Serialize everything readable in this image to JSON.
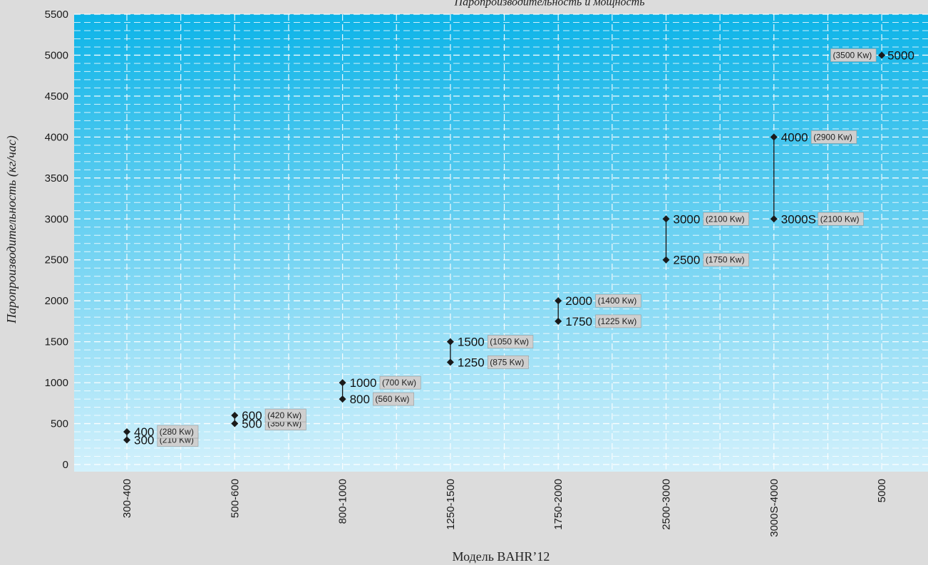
{
  "chart_data": {
    "type": "scatter",
    "title": "Паропроизводительность и мощность",
    "xlabel": "Модель BAHR’12",
    "ylabel": "Паропроизводительность (кг/час)",
    "ylim": [
      0,
      5500
    ],
    "yticks": [
      0,
      500,
      1000,
      1500,
      2000,
      2500,
      3000,
      3500,
      4000,
      4500,
      5000,
      5500
    ],
    "categories": [
      "300-400",
      "500-600",
      "800-1000",
      "1250-1500",
      "1750-2000",
      "2500-3000",
      "3000S-4000",
      "5000"
    ],
    "grid": true,
    "points": [
      {
        "category": "300-400",
        "value": 300,
        "label": "300",
        "power": "(210 Kw)"
      },
      {
        "category": "300-400",
        "value": 400,
        "label": "400",
        "power": "(280 Kw)"
      },
      {
        "category": "500-600",
        "value": 500,
        "label": "500",
        "power": "(350 Kw)"
      },
      {
        "category": "500-600",
        "value": 600,
        "label": "600",
        "power": "(420 Kw)"
      },
      {
        "category": "800-1000",
        "value": 800,
        "label": "800",
        "power": "(560 Kw)"
      },
      {
        "category": "800-1000",
        "value": 1000,
        "label": "1000",
        "power": "(700 Kw)"
      },
      {
        "category": "1250-1500",
        "value": 1250,
        "label": "1250",
        "power": "(875 Kw)"
      },
      {
        "category": "1250-1500",
        "value": 1500,
        "label": "1500",
        "power": "(1050 Kw)"
      },
      {
        "category": "1750-2000",
        "value": 1750,
        "label": "1750",
        "power": "(1225 Kw)"
      },
      {
        "category": "1750-2000",
        "value": 2000,
        "label": "2000",
        "power": "(1400 Kw)"
      },
      {
        "category": "2500-3000",
        "value": 2500,
        "label": "2500",
        "power": "(1750 Kw)"
      },
      {
        "category": "2500-3000",
        "value": 3000,
        "label": "3000",
        "power": "(2100 Kw)"
      },
      {
        "category": "3000S-4000",
        "value": 3000,
        "label": "3000S",
        "power": "(2100 Kw)"
      },
      {
        "category": "3000S-4000",
        "value": 4000,
        "label": "4000",
        "power": "(2900 Kw)"
      },
      {
        "category": "5000",
        "value": 5000,
        "label": "5000",
        "power": "(3500 Kw)"
      }
    ]
  }
}
